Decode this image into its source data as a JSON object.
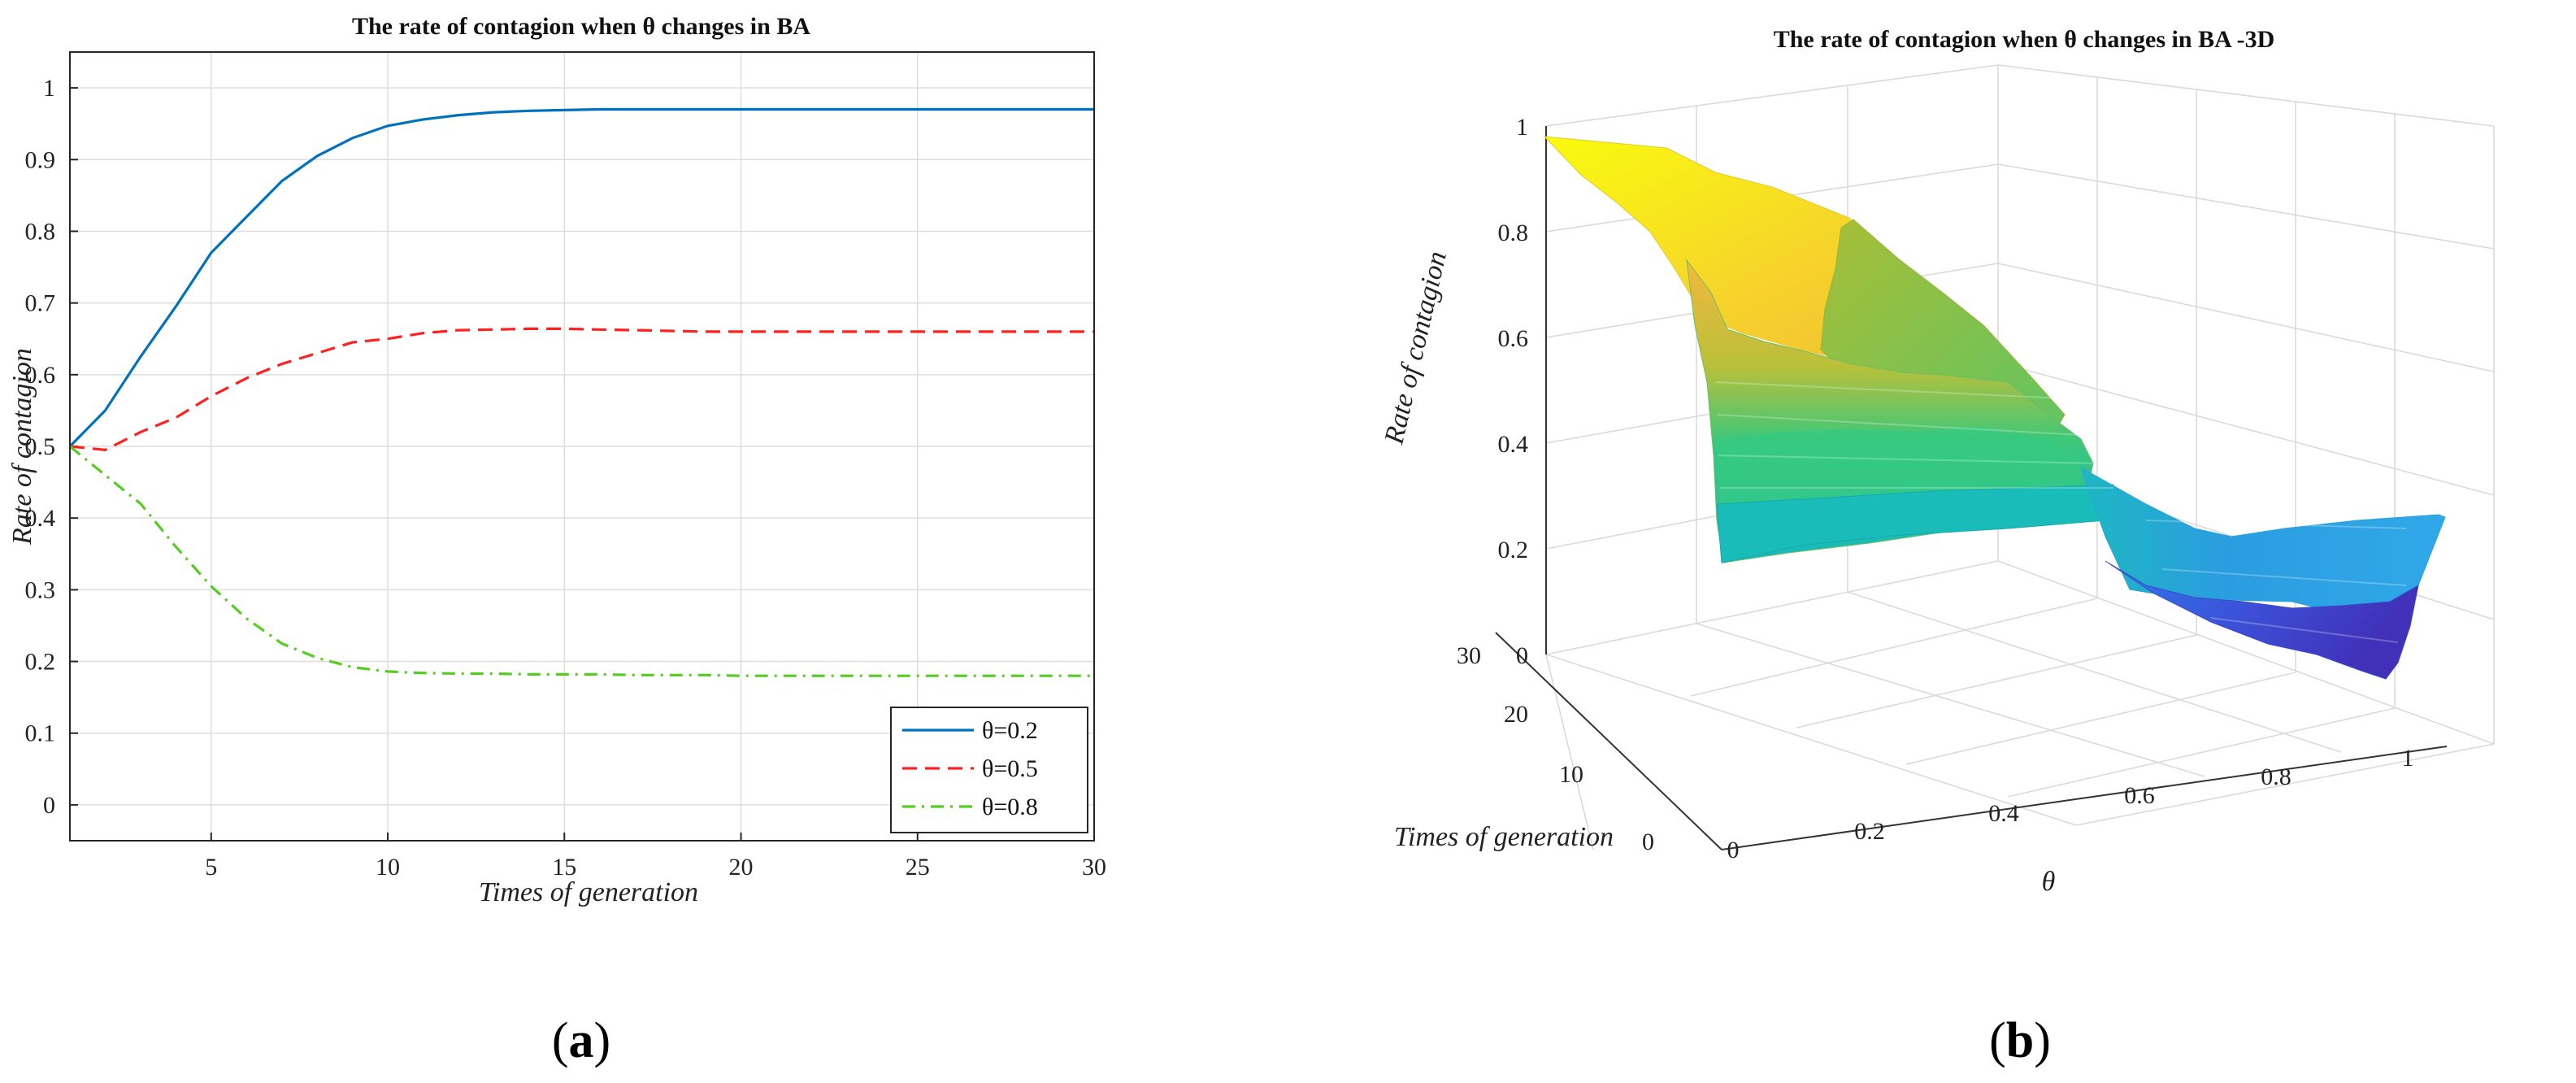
{
  "chart_data": [
    {
      "panel_label": "a",
      "type": "line",
      "title": "The rate of contagion when θ changes in BA",
      "xlabel": "Times of generation",
      "ylabel": "Rate of contagion",
      "xlim": [
        1,
        30
      ],
      "ylim": [
        -0.05,
        1.05
      ],
      "xticks": [
        5,
        10,
        15,
        20,
        25,
        30
      ],
      "yticks": [
        0,
        0.1,
        0.2,
        0.3,
        0.4,
        0.5,
        0.6,
        0.7,
        0.8,
        0.9,
        1
      ],
      "grid": true,
      "legend_position": "bottom-right",
      "x": [
        1,
        2,
        3,
        4,
        5,
        6,
        7,
        8,
        9,
        10,
        11,
        12,
        13,
        14,
        15,
        16,
        17,
        18,
        19,
        20,
        21,
        22,
        23,
        24,
        25,
        26,
        27,
        28,
        29,
        30
      ],
      "series": [
        {
          "name": "θ=0.2",
          "color": "#0072BD",
          "dash": "solid",
          "values": [
            0.5,
            0.55,
            0.625,
            0.695,
            0.77,
            0.82,
            0.87,
            0.905,
            0.93,
            0.947,
            0.956,
            0.962,
            0.966,
            0.968,
            0.969,
            0.97,
            0.97,
            0.97,
            0.97,
            0.97,
            0.97,
            0.97,
            0.97,
            0.97,
            0.97,
            0.97,
            0.97,
            0.97,
            0.97,
            0.97
          ]
        },
        {
          "name": "θ=0.5",
          "color": "#FF2020",
          "dash": "dashed",
          "values": [
            0.5,
            0.495,
            0.52,
            0.54,
            0.57,
            0.595,
            0.615,
            0.63,
            0.645,
            0.65,
            0.658,
            0.662,
            0.663,
            0.664,
            0.664,
            0.663,
            0.662,
            0.661,
            0.66,
            0.66,
            0.66,
            0.66,
            0.66,
            0.66,
            0.66,
            0.66,
            0.66,
            0.66,
            0.66,
            0.66
          ]
        },
        {
          "name": "θ=0.8",
          "color": "#55CC22",
          "dash": "dashdot",
          "values": [
            0.5,
            0.46,
            0.42,
            0.36,
            0.305,
            0.26,
            0.225,
            0.205,
            0.192,
            0.186,
            0.184,
            0.183,
            0.183,
            0.182,
            0.182,
            0.182,
            0.181,
            0.181,
            0.181,
            0.18,
            0.18,
            0.18,
            0.18,
            0.18,
            0.18,
            0.18,
            0.18,
            0.18,
            0.18,
            0.18
          ]
        }
      ]
    },
    {
      "panel_label": "b",
      "type": "surface",
      "title": "The rate of contagion when θ changes in BA -3D",
      "xlabel": "θ",
      "ylabel": "Times of generation",
      "zlabel": "Rate of contagion",
      "xticks": [
        0,
        0.2,
        0.4,
        0.6,
        0.8,
        1
      ],
      "yticks": [
        0,
        10,
        20,
        30
      ],
      "zticks": [
        0,
        0.2,
        0.4,
        0.6,
        0.8,
        1
      ],
      "grid": true,
      "colormap": [
        "#3E26A8",
        "#2E88F0",
        "#14BBBB",
        "#27C97A",
        "#A9BE36",
        "#F6B83A",
        "#F9FB0E"
      ]
    }
  ]
}
